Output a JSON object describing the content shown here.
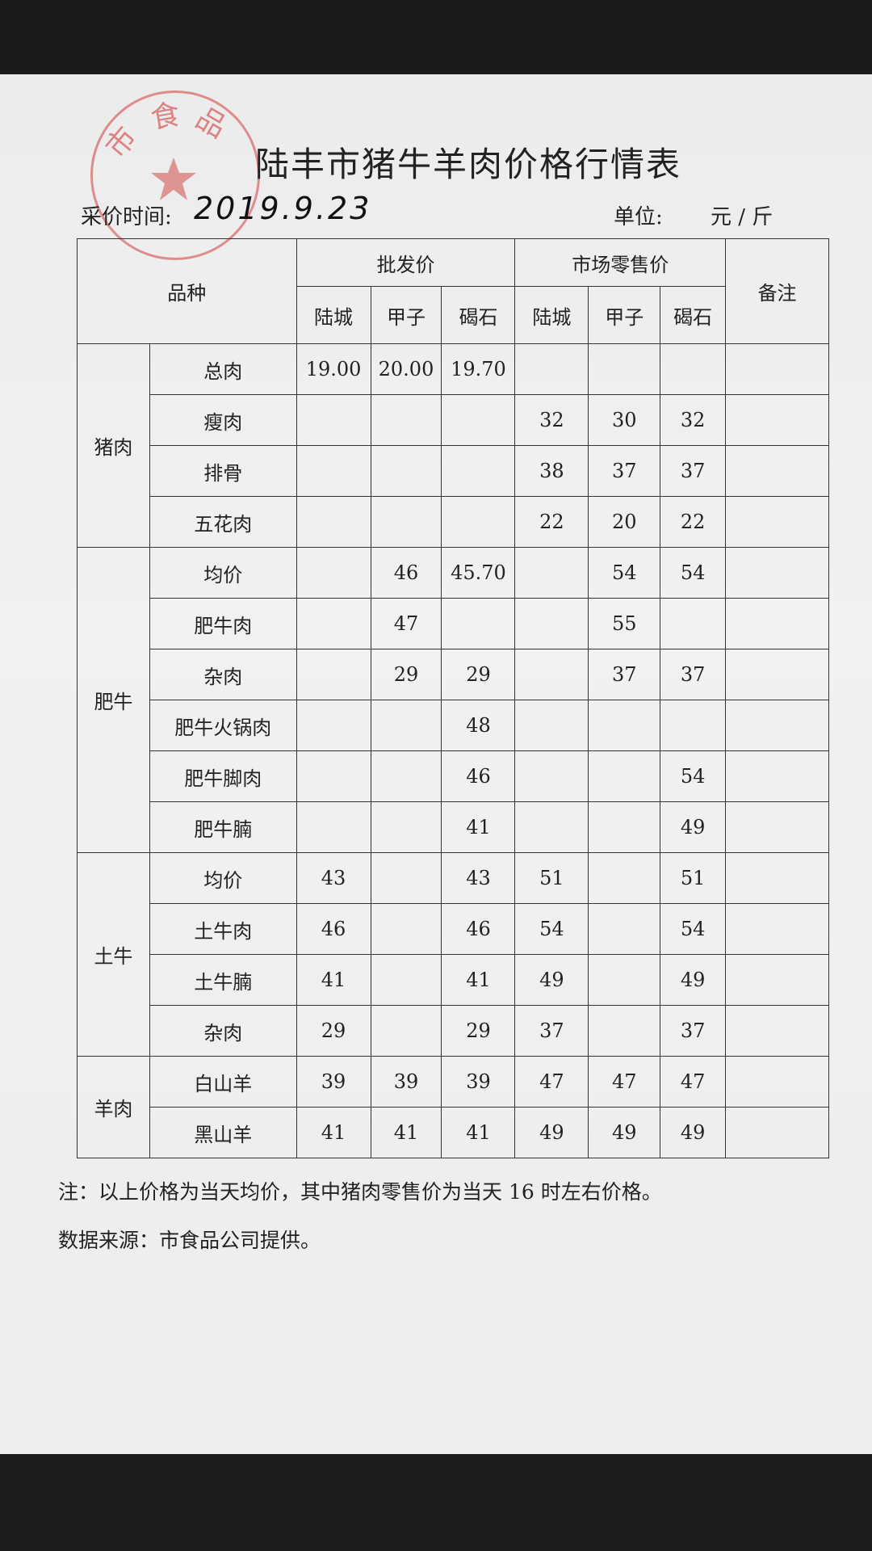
{
  "title": "陆丰市猪牛羊肉价格行情表",
  "date_label": "采价时间:",
  "date_value": "2019.9.23",
  "unit_label": "单位:",
  "unit_value": "元 / 斤",
  "stamp": {
    "text": "市食品公司",
    "color": "#d23c3c"
  },
  "header": {
    "variety": "品种",
    "wholesale": "批发价",
    "retail": "市场零售价",
    "remark": "备注",
    "locations": [
      "陆城",
      "甲子",
      "碣石",
      "陆城",
      "甲子",
      "碣石"
    ]
  },
  "groups": [
    {
      "name": "猪肉",
      "rows": [
        {
          "item": "总肉",
          "values": [
            "19.00",
            "20.00",
            "19.70",
            "",
            "",
            ""
          ]
        },
        {
          "item": "瘦肉",
          "values": [
            "",
            "",
            "",
            "32",
            "30",
            "32"
          ]
        },
        {
          "item": "排骨",
          "values": [
            "",
            "",
            "",
            "38",
            "37",
            "37"
          ]
        },
        {
          "item": "五花肉",
          "values": [
            "",
            "",
            "",
            "22",
            "20",
            "22"
          ]
        }
      ]
    },
    {
      "name": "肥牛",
      "rows": [
        {
          "item": "均价",
          "values": [
            "",
            "46",
            "45.70",
            "",
            "54",
            "54"
          ]
        },
        {
          "item": "肥牛肉",
          "values": [
            "",
            "47",
            "",
            "",
            "55",
            ""
          ]
        },
        {
          "item": "杂肉",
          "values": [
            "",
            "29",
            "29",
            "",
            "37",
            "37"
          ]
        },
        {
          "item": "肥牛火锅肉",
          "values": [
            "",
            "",
            "48",
            "",
            "",
            ""
          ]
        },
        {
          "item": "肥牛脚肉",
          "values": [
            "",
            "",
            "46",
            "",
            "",
            "54"
          ]
        },
        {
          "item": "肥牛腩",
          "values": [
            "",
            "",
            "41",
            "",
            "",
            "49"
          ]
        }
      ]
    },
    {
      "name": "土牛",
      "rows": [
        {
          "item": "均价",
          "values": [
            "43",
            "",
            "43",
            "51",
            "",
            "51"
          ]
        },
        {
          "item": "土牛肉",
          "values": [
            "46",
            "",
            "46",
            "54",
            "",
            "54"
          ]
        },
        {
          "item": "土牛腩",
          "values": [
            "41",
            "",
            "41",
            "49",
            "",
            "49"
          ]
        },
        {
          "item": "杂肉",
          "values": [
            "29",
            "",
            "29",
            "37",
            "",
            "37"
          ]
        }
      ]
    },
    {
      "name": "羊肉",
      "rows": [
        {
          "item": "白山羊",
          "values": [
            "39",
            "39",
            "39",
            "47",
            "47",
            "47"
          ]
        },
        {
          "item": "黑山羊",
          "values": [
            "41",
            "41",
            "41",
            "49",
            "49",
            "49"
          ]
        }
      ]
    }
  ],
  "note": "注：以上价格为当天均价，其中猪肉零售价为当天 16 时左右价格。",
  "source": "数据来源：市食品公司提供。"
}
